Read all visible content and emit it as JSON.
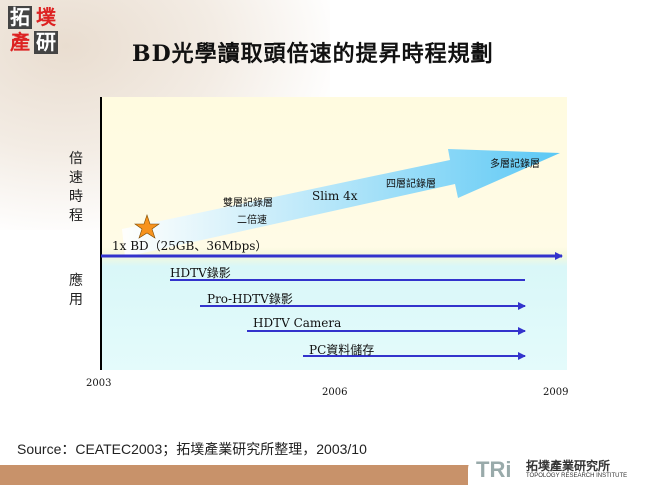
{
  "logo": {
    "chars": [
      "拓",
      "墣",
      "產",
      "研"
    ]
  },
  "title": "BD光學讀取頭倍速的提昇時程規劃",
  "axis_labels": {
    "speed": "倍速時程",
    "application": "應用"
  },
  "speed_path": {
    "start": "1x BD（25GB、36Mbps）",
    "steps": [
      "雙層記錄層",
      "二倍速",
      "Slim 4x",
      "四層記錄層",
      "多層記錄層"
    ]
  },
  "applications": [
    "HDTV錄影",
    "Pro-HDTV錄影",
    "HDTV Camera",
    "PC資料儲存"
  ],
  "years": [
    "2003",
    "2006",
    "2009"
  ],
  "colors": {
    "arrow": "#3333cc",
    "big_arrow": "#5bc8f5",
    "star": "#f7931e",
    "footer_band": "#c8926a"
  },
  "source": "Source：CEATEC2003；拓墣產業研究所整理，2003/10",
  "footer_logo": {
    "mark": "TRi",
    "name": "拓墣產業研究所",
    "sub": "TOPOLOGY RESEARCH INSTITUTE"
  }
}
